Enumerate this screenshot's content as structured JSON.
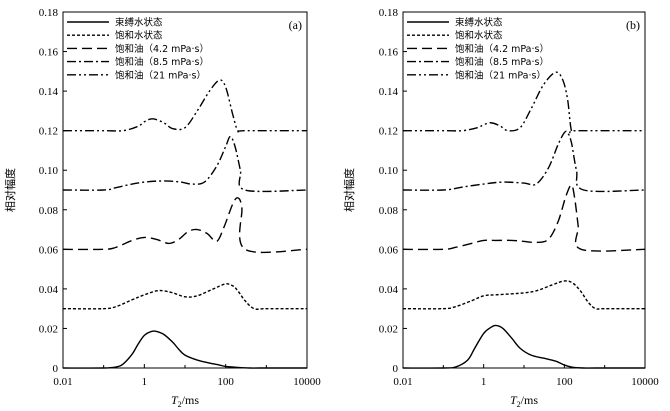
{
  "chart_data": [
    {
      "type": "line",
      "panel_label": "(a)",
      "xlabel": "T2/ms",
      "xlabel_main": "T",
      "xlabel_sub": "2",
      "xlabel_unit": "/ms",
      "ylabel": "相对幅度",
      "xscale": "log",
      "xlim": [
        0.01,
        10000
      ],
      "ylim": [
        0,
        0.18
      ],
      "x_ticks": [
        0.01,
        1,
        100,
        10000
      ],
      "x_tick_labels": [
        "0.01",
        "1",
        "100",
        "10000"
      ],
      "y_ticks": [
        0,
        0.02,
        0.04,
        0.06,
        0.08,
        0.1,
        0.12,
        0.14,
        0.16,
        0.18
      ],
      "y_tick_labels": [
        "0",
        "0.02",
        "0.04",
        "0.06",
        "0.08",
        "0.10",
        "0.12",
        "0.14",
        "0.16",
        "0.18"
      ],
      "legend_position": "top-left",
      "series": [
        {
          "name": "束缚水状态",
          "dash": "solid",
          "x": [
            0.01,
            0.1,
            0.2,
            0.3,
            0.5,
            0.7,
            1,
            1.5,
            2,
            3,
            5,
            7,
            10,
            20,
            40,
            70,
            100,
            200,
            400,
            700,
            10000
          ],
          "y": [
            0,
            0,
            0.0005,
            0.002,
            0.007,
            0.012,
            0.0165,
            0.0185,
            0.0185,
            0.017,
            0.013,
            0.0095,
            0.0065,
            0.004,
            0.0025,
            0.0015,
            0.0008,
            0.0003,
            0,
            0,
            0
          ]
        },
        {
          "name": "饱和水状态",
          "dash": "dotted",
          "x": [
            0.01,
            0.1,
            0.2,
            0.5,
            1,
            2,
            3,
            5,
            10,
            20,
            50,
            100,
            150,
            200,
            300,
            500,
            1000,
            10000
          ],
          "y": [
            0.03,
            0.03,
            0.031,
            0.0345,
            0.037,
            0.039,
            0.039,
            0.038,
            0.036,
            0.0365,
            0.04,
            0.0425,
            0.0415,
            0.039,
            0.034,
            0.03,
            0.03,
            0.03
          ]
        },
        {
          "name": "饱和油（4.2 mPa·s）",
          "dash": "long-dash",
          "x": [
            0.01,
            0.1,
            0.2,
            0.5,
            1,
            2,
            4,
            7,
            12,
            20,
            35,
            60,
            90,
            150,
            200,
            250,
            300,
            10000
          ],
          "y": [
            0.06,
            0.06,
            0.061,
            0.0645,
            0.066,
            0.065,
            0.063,
            0.065,
            0.069,
            0.07,
            0.068,
            0.064,
            0.071,
            0.083,
            0.086,
            0.081,
            0.06,
            0.06
          ]
        },
        {
          "name": "饱和油（8.5 mPa·s）",
          "dash": "dash-dot",
          "x": [
            0.01,
            0.1,
            0.2,
            0.5,
            1,
            2,
            4,
            8,
            15,
            30,
            60,
            100,
            130,
            170,
            230,
            300,
            10000
          ],
          "y": [
            0.09,
            0.09,
            0.0912,
            0.093,
            0.094,
            0.0945,
            0.0945,
            0.094,
            0.093,
            0.094,
            0.102,
            0.112,
            0.117,
            0.112,
            0.1,
            0.09,
            0.09
          ]
        },
        {
          "name": "饱和油（21 mPa·s）",
          "dash": "dash-dot-dot",
          "x": [
            0.01,
            0.1,
            0.3,
            0.7,
            1,
            1.6,
            3,
            5,
            10,
            20,
            40,
            70,
            100,
            150,
            200,
            300,
            10000
          ],
          "y": [
            0.12,
            0.12,
            0.12,
            0.1222,
            0.1245,
            0.126,
            0.124,
            0.121,
            0.1215,
            0.13,
            0.14,
            0.1455,
            0.142,
            0.128,
            0.12,
            0.12,
            0.12
          ]
        }
      ]
    },
    {
      "type": "line",
      "panel_label": "(b)",
      "xlabel": "T2/ms",
      "xlabel_main": "T",
      "xlabel_sub": "2",
      "xlabel_unit": "/ms",
      "ylabel": "相对幅度",
      "xscale": "log",
      "xlim": [
        0.01,
        10000
      ],
      "ylim": [
        0,
        0.18
      ],
      "x_ticks": [
        0.01,
        1,
        100,
        10000
      ],
      "x_tick_labels": [
        "0.01",
        "1",
        "100",
        "10000"
      ],
      "y_ticks": [
        0,
        0.02,
        0.04,
        0.06,
        0.08,
        0.1,
        0.12,
        0.14,
        0.16,
        0.18
      ],
      "y_tick_labels": [
        "0",
        "0.02",
        "0.04",
        "0.06",
        "0.08",
        "0.10",
        "0.12",
        "0.14",
        "0.16",
        "0.18"
      ],
      "legend_position": "top-left",
      "series": [
        {
          "name": "束缚水状态",
          "dash": "solid",
          "x": [
            0.01,
            0.1,
            0.2,
            0.4,
            0.6,
            1,
            1.5,
            2,
            3,
            5,
            8,
            15,
            30,
            60,
            100,
            150,
            300,
            600,
            10000
          ],
          "y": [
            0,
            0,
            0.0005,
            0.004,
            0.01,
            0.0175,
            0.0205,
            0.0215,
            0.02,
            0.015,
            0.01,
            0.0065,
            0.005,
            0.0035,
            0.0015,
            0.0005,
            0,
            0,
            0
          ]
        },
        {
          "name": "饱和水状态",
          "dash": "dotted",
          "x": [
            0.01,
            0.1,
            0.2,
            0.5,
            1,
            2,
            5,
            10,
            20,
            50,
            100,
            160,
            250,
            400,
            600,
            1000,
            10000
          ],
          "y": [
            0.03,
            0.03,
            0.031,
            0.034,
            0.0365,
            0.037,
            0.0375,
            0.038,
            0.039,
            0.042,
            0.044,
            0.043,
            0.039,
            0.033,
            0.03,
            0.03,
            0.03
          ]
        },
        {
          "name": "饱和油（4.2 mPa·s）",
          "dash": "long-dash",
          "x": [
            0.01,
            0.1,
            0.2,
            0.5,
            1,
            2,
            5,
            10,
            20,
            40,
            70,
            110,
            150,
            180,
            220,
            260,
            10000
          ],
          "y": [
            0.06,
            0.06,
            0.061,
            0.063,
            0.0645,
            0.0645,
            0.0645,
            0.064,
            0.0635,
            0.065,
            0.074,
            0.087,
            0.0925,
            0.086,
            0.072,
            0.06,
            0.06
          ]
        },
        {
          "name": "饱和油（8.5 mPa·s）",
          "dash": "dash-dot",
          "x": [
            0.01,
            0.1,
            0.3,
            1,
            3,
            10,
            20,
            40,
            70,
            100,
            120,
            150,
            200,
            300,
            10000
          ],
          "y": [
            0.09,
            0.09,
            0.0915,
            0.093,
            0.094,
            0.0935,
            0.093,
            0.101,
            0.113,
            0.119,
            0.119,
            0.114,
            0.1,
            0.09,
            0.09
          ]
        },
        {
          "name": "饱和油（21 mPa·s）",
          "dash": "dash-dot-dot",
          "x": [
            0.01,
            0.1,
            0.3,
            0.7,
            1,
            1.5,
            2.5,
            4,
            8,
            15,
            30,
            60,
            90,
            120,
            150,
            200,
            10000
          ],
          "y": [
            0.12,
            0.12,
            0.12,
            0.1215,
            0.123,
            0.124,
            0.1225,
            0.12,
            0.1215,
            0.131,
            0.143,
            0.1495,
            0.146,
            0.136,
            0.12,
            0.12,
            0.12
          ]
        }
      ]
    }
  ]
}
